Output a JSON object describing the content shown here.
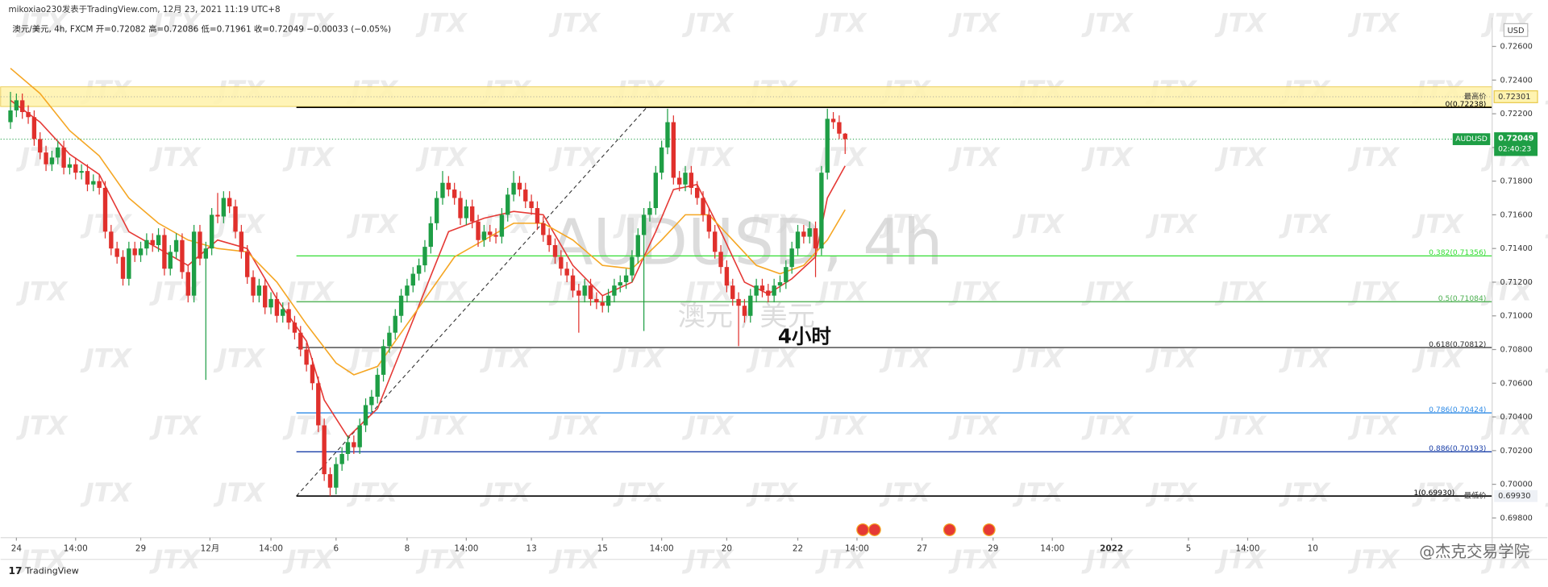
{
  "header": {
    "author_line": "mikoxiao230发表于TradingView.com, 12月 23, 2021 11:19 UTC+8",
    "legend": "澳元/美元, 4h, FXCM  开=0.72082  高=0.72086  低=0.71961  收=0.72049  −0.00033 (−0.05%)"
  },
  "footer": {
    "brand": "TradingView",
    "watermark": "@杰克交易学院",
    "pattern": "JTX"
  },
  "chart_data": {
    "type": "candlestick",
    "symbol_watermark": "AUDUSD, 4h",
    "symbol_subtitle": "澳元 / 美元",
    "annotation": "4小时",
    "currency": "USD",
    "colors": {
      "up": "#1e9e45",
      "down": "#e0302c"
    },
    "open": [
      0.7215,
      0.7222,
      0.7228,
      0.7221,
      0.7218,
      0.7205,
      0.7197,
      0.719,
      0.7194,
      0.72,
      0.7188,
      0.719,
      0.7185,
      0.7186,
      0.7178,
      0.718,
      0.7176,
      0.715,
      0.714,
      0.7135,
      0.7122,
      0.714,
      0.7136,
      0.714,
      0.7145,
      0.7142,
      0.7148,
      0.7128,
      0.7138,
      0.7145,
      0.7126,
      0.7112,
      0.715,
      0.7134,
      0.714,
      0.716,
      0.7159,
      0.717,
      0.7165,
      0.715,
      0.7138,
      0.7123,
      0.7112,
      0.7118,
      0.7105,
      0.711,
      0.71,
      0.7104,
      0.7096,
      0.709,
      0.708,
      0.7071,
      0.706,
      0.7035,
      0.7006,
      0.6998,
      0.7012,
      0.7018,
      0.7025,
      0.7022,
      0.7035,
      0.7047,
      0.7052,
      0.7065,
      0.7082,
      0.709,
      0.71,
      0.7112,
      0.7118,
      0.7125,
      0.713,
      0.7141,
      0.7155,
      0.717,
      0.7179,
      0.7175,
      0.717,
      0.7158,
      0.7165,
      0.7156,
      0.7145,
      0.715,
      0.7148,
      0.7147,
      0.716,
      0.7172,
      0.7179,
      0.7175,
      0.7168,
      0.7164,
      0.7155,
      0.7148,
      0.7142,
      0.7135,
      0.7128,
      0.7124,
      0.7115,
      0.7112,
      0.7118,
      0.711,
      0.7108,
      0.7106,
      0.7112,
      0.7118,
      0.712,
      0.7124,
      0.7135,
      0.7148,
      0.716,
      0.7164,
      0.7185,
      0.72,
      0.7215,
      0.7182,
      0.7178,
      0.7185,
      0.7176,
      0.717,
      0.716,
      0.715,
      0.7138,
      0.7129,
      0.7118,
      0.711,
      0.7106,
      0.71,
      0.7112,
      0.7118,
      0.7115,
      0.7112,
      0.7118,
      0.712,
      0.7129,
      0.714,
      0.715,
      0.7147,
      0.7152,
      0.714,
      0.7185,
      0.7217,
      0.7215,
      0.72082
    ],
    "high": [
      0.7233,
      0.7232,
      0.7232,
      0.7225,
      0.7222,
      0.7209,
      0.7201,
      0.7198,
      0.7204,
      0.7204,
      0.7194,
      0.7194,
      0.719,
      0.719,
      0.7184,
      0.7184,
      0.718,
      0.7154,
      0.7144,
      0.7139,
      0.7144,
      0.7144,
      0.7144,
      0.7149,
      0.7149,
      0.7152,
      0.7152,
      0.7142,
      0.7149,
      0.7149,
      0.713,
      0.7154,
      0.7154,
      0.7144,
      0.7164,
      0.7173,
      0.7174,
      0.7174,
      0.7169,
      0.7154,
      0.7142,
      0.7127,
      0.7122,
      0.7122,
      0.7114,
      0.7114,
      0.7108,
      0.7108,
      0.71,
      0.7094,
      0.7084,
      0.7075,
      0.7064,
      0.7039,
      0.701,
      0.7016,
      0.7022,
      0.7029,
      0.7029,
      0.7039,
      0.7051,
      0.7056,
      0.7069,
      0.7086,
      0.7094,
      0.7104,
      0.7116,
      0.7122,
      0.7129,
      0.7134,
      0.7145,
      0.7159,
      0.7174,
      0.7186,
      0.7183,
      0.7179,
      0.7174,
      0.7169,
      0.7169,
      0.716,
      0.7154,
      0.7154,
      0.7152,
      0.7164,
      0.7176,
      0.7186,
      0.7183,
      0.7179,
      0.7172,
      0.7168,
      0.7159,
      0.7152,
      0.7146,
      0.7139,
      0.7132,
      0.7128,
      0.7119,
      0.7122,
      0.7122,
      0.7114,
      0.7112,
      0.7116,
      0.7122,
      0.7124,
      0.7128,
      0.7139,
      0.7152,
      0.7164,
      0.7168,
      0.7189,
      0.7204,
      0.7223,
      0.7219,
      0.7186,
      0.7189,
      0.7189,
      0.718,
      0.7174,
      0.7164,
      0.7154,
      0.7142,
      0.7133,
      0.7122,
      0.7114,
      0.711,
      0.7116,
      0.7122,
      0.7122,
      0.7119,
      0.7122,
      0.7124,
      0.7133,
      0.7144,
      0.7154,
      0.7154,
      0.7156,
      0.7156,
      0.7189,
      0.7223,
      0.7221,
      0.7219,
      0.72086
    ],
    "low": [
      0.7211,
      0.7218,
      0.7217,
      0.7214,
      0.7201,
      0.7193,
      0.7186,
      0.7186,
      0.719,
      0.7184,
      0.7184,
      0.7181,
      0.7181,
      0.7174,
      0.7174,
      0.7172,
      0.7146,
      0.7136,
      0.7131,
      0.7118,
      0.7118,
      0.7132,
      0.7132,
      0.7136,
      0.7138,
      0.7138,
      0.7124,
      0.7124,
      0.7134,
      0.7122,
      0.7108,
      0.7108,
      0.713,
      0.7062,
      0.7136,
      0.7155,
      0.7155,
      0.7161,
      0.7146,
      0.7134,
      0.7119,
      0.7108,
      0.7108,
      0.7101,
      0.7101,
      0.7096,
      0.7096,
      0.7092,
      0.7086,
      0.7076,
      0.7067,
      0.7056,
      0.7031,
      0.7002,
      0.6993,
      0.6994,
      0.7008,
      0.7014,
      0.7018,
      0.7018,
      0.7031,
      0.7043,
      0.7048,
      0.7061,
      0.7078,
      0.7086,
      0.7096,
      0.7108,
      0.7114,
      0.7121,
      0.7126,
      0.7137,
      0.7151,
      0.7166,
      0.7171,
      0.7166,
      0.7154,
      0.7154,
      0.7152,
      0.7141,
      0.7141,
      0.7144,
      0.7143,
      0.7143,
      0.7156,
      0.7168,
      0.7171,
      0.7164,
      0.716,
      0.7151,
      0.7144,
      0.7138,
      0.7131,
      0.7124,
      0.712,
      0.7111,
      0.709,
      0.7108,
      0.7106,
      0.7104,
      0.7102,
      0.7102,
      0.7108,
      0.7114,
      0.7116,
      0.712,
      0.7131,
      0.7091,
      0.7156,
      0.716,
      0.7181,
      0.7196,
      0.7178,
      0.7174,
      0.7174,
      0.7172,
      0.7166,
      0.7156,
      0.7146,
      0.7134,
      0.7125,
      0.7114,
      0.7106,
      0.7082,
      0.7096,
      0.7096,
      0.7108,
      0.7111,
      0.7108,
      0.7108,
      0.7114,
      0.7116,
      0.7125,
      0.7136,
      0.7143,
      0.7143,
      0.7123,
      0.7136,
      0.7181,
      0.7211,
      0.7205,
      0.71961
    ],
    "close": [
      0.7222,
      0.7228,
      0.7221,
      0.7218,
      0.7205,
      0.7197,
      0.719,
      0.7194,
      0.72,
      0.7188,
      0.719,
      0.7185,
      0.7186,
      0.7178,
      0.718,
      0.7176,
      0.715,
      0.714,
      0.7135,
      0.7122,
      0.714,
      0.7136,
      0.714,
      0.7145,
      0.7142,
      0.7148,
      0.7128,
      0.7138,
      0.7145,
      0.7126,
      0.7112,
      0.715,
      0.7134,
      0.714,
      0.716,
      0.7159,
      0.717,
      0.7165,
      0.715,
      0.7138,
      0.7123,
      0.7112,
      0.7118,
      0.7105,
      0.711,
      0.71,
      0.7104,
      0.7096,
      0.709,
      0.708,
      0.7071,
      0.706,
      0.7035,
      0.7006,
      0.6998,
      0.7012,
      0.7018,
      0.7025,
      0.7022,
      0.7035,
      0.7047,
      0.7052,
      0.7065,
      0.7082,
      0.709,
      0.71,
      0.7112,
      0.7118,
      0.7125,
      0.713,
      0.7141,
      0.7155,
      0.717,
      0.7179,
      0.7175,
      0.717,
      0.7158,
      0.7165,
      0.7156,
      0.7145,
      0.715,
      0.7148,
      0.7147,
      0.716,
      0.7172,
      0.7179,
      0.7175,
      0.7168,
      0.7164,
      0.7155,
      0.7148,
      0.7142,
      0.7135,
      0.7128,
      0.7124,
      0.7115,
      0.7112,
      0.7118,
      0.711,
      0.7108,
      0.7106,
      0.7112,
      0.7118,
      0.712,
      0.7124,
      0.7135,
      0.7148,
      0.716,
      0.7164,
      0.7185,
      0.72,
      0.7215,
      0.7182,
      0.7178,
      0.7185,
      0.7176,
      0.717,
      0.716,
      0.715,
      0.7138,
      0.7129,
      0.7118,
      0.711,
      0.7106,
      0.71,
      0.7112,
      0.7118,
      0.7115,
      0.7112,
      0.7118,
      0.712,
      0.7129,
      0.714,
      0.715,
      0.7147,
      0.7152,
      0.714,
      0.7185,
      0.7217,
      0.7215,
      0.72082,
      0.72049
    ],
    "moving_averages": [
      {
        "color": "#e53935",
        "x": [
          0,
          5,
          10,
          15,
          20,
          25,
          30,
          35,
          40,
          45,
          50,
          53,
          57,
          62,
          66,
          70,
          74,
          80,
          85,
          90,
          95,
          100,
          105,
          109,
          112,
          116,
          120,
          124,
          128,
          132,
          136,
          138,
          141
        ],
        "values": [
          0.7228,
          0.7215,
          0.7196,
          0.7184,
          0.715,
          0.714,
          0.713,
          0.7145,
          0.714,
          0.711,
          0.7085,
          0.705,
          0.7028,
          0.7045,
          0.708,
          0.7115,
          0.715,
          0.7158,
          0.7162,
          0.716,
          0.713,
          0.7112,
          0.712,
          0.715,
          0.7175,
          0.7178,
          0.715,
          0.712,
          0.7113,
          0.7122,
          0.7135,
          0.717,
          0.7189
        ]
      },
      {
        "color": "#f5a623",
        "x": [
          0,
          5,
          10,
          15,
          20,
          25,
          30,
          35,
          40,
          45,
          50,
          55,
          58,
          62,
          66,
          70,
          75,
          80,
          85,
          90,
          95,
          100,
          105,
          110,
          114,
          118,
          122,
          126,
          130,
          134,
          138,
          141
        ],
        "values": [
          0.7247,
          0.7232,
          0.721,
          0.7195,
          0.717,
          0.7155,
          0.7145,
          0.714,
          0.7138,
          0.712,
          0.7095,
          0.7072,
          0.7065,
          0.707,
          0.709,
          0.711,
          0.7135,
          0.7145,
          0.7155,
          0.7155,
          0.7145,
          0.713,
          0.7128,
          0.7145,
          0.716,
          0.716,
          0.7145,
          0.713,
          0.7125,
          0.713,
          0.7145,
          0.7163
        ]
      }
    ],
    "trendline": {
      "x": [
        48.3,
        107.5
      ],
      "y": [
        0.6993,
        0.72238
      ]
    },
    "zone": {
      "range": [
        0.72243,
        0.7236
      ],
      "color": "#fff3b0"
    },
    "fib_levels": [
      {
        "label": "0(0.72238)",
        "price": 0.72238,
        "color": "#000000"
      },
      {
        "label": "0.382(0.71356)",
        "price": 0.71356,
        "color": "#33dd33"
      },
      {
        "label": "0.5(0.71084)",
        "price": 0.71084,
        "color": "#4caf50"
      },
      {
        "label": "0.618(0.70812)",
        "price": 0.70812,
        "color": "#2d2d2d"
      },
      {
        "label": "0.786(0.70424)",
        "price": 0.70424,
        "color": "#2f8be6"
      },
      {
        "label": "0.886(0.70193)",
        "price": 0.70193,
        "color": "#1a3fa8"
      },
      {
        "label": "1(0.69930)",
        "price": 0.6993,
        "color": "#000000"
      }
    ],
    "high_marker": {
      "label": "最高价",
      "price": 0.72301,
      "price_label": "0.72301"
    },
    "low_marker": {
      "label": "最低价",
      "price": 0.6993,
      "price_label": "0.69930"
    },
    "last_price": {
      "symbol": "AUDUSD",
      "price": 0.72049,
      "price_label": "0.72049",
      "countdown": "02:40:23",
      "color": "#1e9e45"
    },
    "ylim": [
      0.69683,
      0.7277
    ],
    "yticks": [
      {
        "value": 0.726,
        "label": "0.72600"
      },
      {
        "value": 0.724,
        "label": "0.72400"
      },
      {
        "value": 0.722,
        "label": "0.72200"
      },
      {
        "value": 0.72,
        "label": "0.72000"
      },
      {
        "value": 0.718,
        "label": "0.71800"
      },
      {
        "value": 0.716,
        "label": "0.71600"
      },
      {
        "value": 0.714,
        "label": "0.71400"
      },
      {
        "value": 0.712,
        "label": "0.71200"
      },
      {
        "value": 0.71,
        "label": "0.71000"
      },
      {
        "value": 0.708,
        "label": "0.70800"
      },
      {
        "value": 0.706,
        "label": "0.70600"
      },
      {
        "value": 0.704,
        "label": "0.70400"
      },
      {
        "value": 0.702,
        "label": "0.70200"
      },
      {
        "value": 0.7,
        "label": "0.70000"
      },
      {
        "value": 0.698,
        "label": "0.69800"
      }
    ],
    "xlim": [
      -1.67,
      250.3
    ],
    "xticks": [
      {
        "value": 1,
        "label": "24"
      },
      {
        "value": 11,
        "label": "14:00"
      },
      {
        "value": 22,
        "label": "29"
      },
      {
        "value": 33.7,
        "label": "12月"
      },
      {
        "value": 44,
        "label": "14:00"
      },
      {
        "value": 55,
        "label": "6"
      },
      {
        "value": 67,
        "label": "8"
      },
      {
        "value": 77,
        "label": "14:00"
      },
      {
        "value": 88,
        "label": "13"
      },
      {
        "value": 100,
        "label": "15"
      },
      {
        "value": 110,
        "label": "14:00"
      },
      {
        "value": 121,
        "label": "20"
      },
      {
        "value": 133,
        "label": "22"
      },
      {
        "value": 143,
        "label": "14:00"
      },
      {
        "value": 154,
        "label": "27"
      },
      {
        "value": 166,
        "label": "29"
      },
      {
        "value": 176,
        "label": "14:00"
      },
      {
        "value": 186,
        "label": "2022"
      },
      {
        "value": 199,
        "label": "5"
      },
      {
        "value": 209,
        "label": "14:00"
      },
      {
        "value": 220,
        "label": "10"
      }
    ]
  }
}
